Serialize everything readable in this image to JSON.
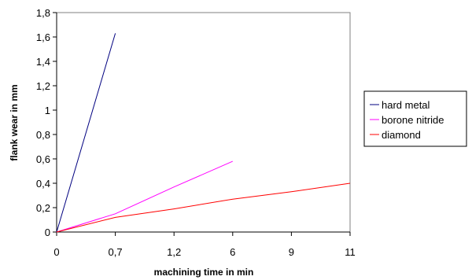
{
  "chart_data": {
    "type": "line",
    "xlabel": "machining time in min",
    "ylabel": "flank wear in mm",
    "x_categories": [
      "0",
      "0,7",
      "1,2",
      "6",
      "9",
      "11"
    ],
    "y_ticks": [
      "0",
      "0,2",
      "0,4",
      "0,6",
      "0,8",
      "1",
      "1,2",
      "1,4",
      "1,6",
      "1,8"
    ],
    "ylim": [
      0,
      1.8
    ],
    "grid": false,
    "legend_position": "right",
    "series": [
      {
        "name": "hard metal",
        "color": "#000080",
        "x": [
          "0",
          "0,7"
        ],
        "y": [
          0,
          1.63
        ]
      },
      {
        "name": "borone nitride",
        "color": "#ff00ff",
        "x": [
          "0",
          "0,7",
          "1,2",
          "6"
        ],
        "y": [
          0,
          0.15,
          0.37,
          0.58
        ]
      },
      {
        "name": "diamond",
        "color": "#ff0000",
        "x": [
          "0",
          "0,7",
          "1,2",
          "6",
          "9",
          "11"
        ],
        "y": [
          0,
          0.12,
          0.19,
          0.27,
          0.33,
          0.4
        ]
      }
    ]
  }
}
